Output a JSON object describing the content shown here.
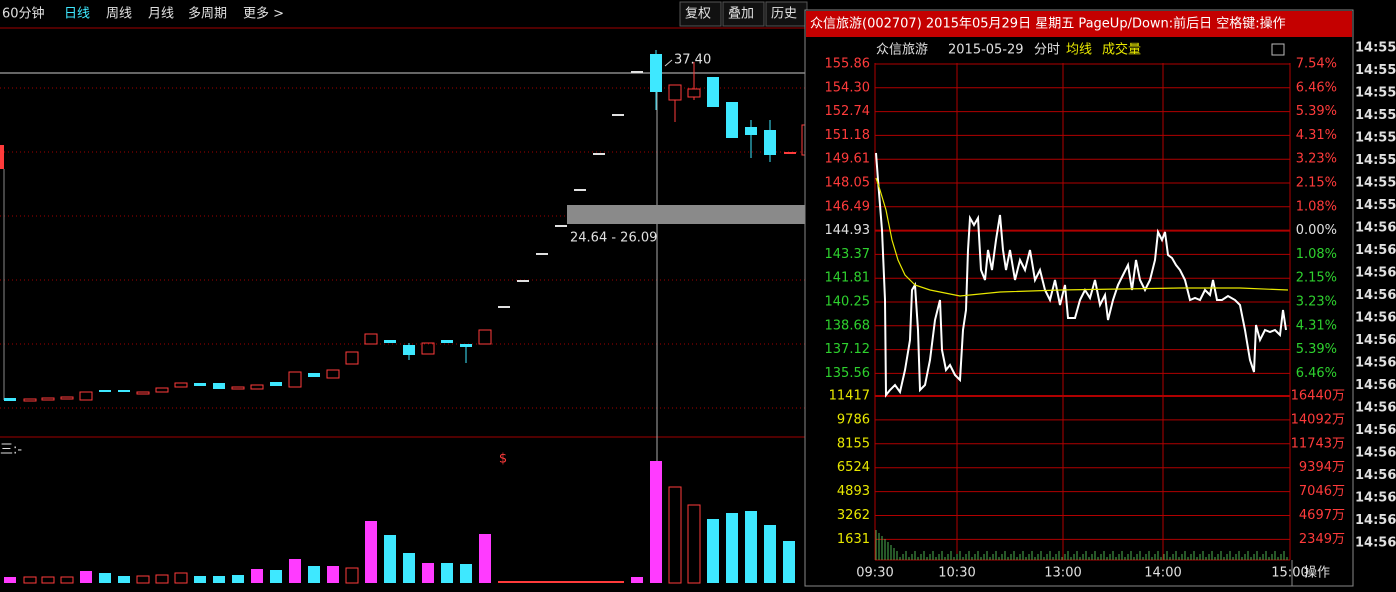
{
  "toolbar": {
    "tabs": [
      "60分钟",
      "日线",
      "周线",
      "月线",
      "多周期",
      "更多 >"
    ],
    "buttons": [
      "复权",
      "叠加",
      "历史"
    ]
  },
  "kline": {
    "high_label": "37.40",
    "range_label": "24.64 - 26.09",
    "marker": "$",
    "volume_label": "三:-"
  },
  "popup": {
    "title": "众信旅游(002707) 2015年05月29日 星期五 PageUp/Down:前后日 空格键:操作",
    "header": {
      "name": "众信旅游",
      "date": "2015-05-29",
      "mode": "分时",
      "avg": "均线",
      "volume": "成交量"
    },
    "price_labels": [
      "155.86",
      "154.30",
      "152.74",
      "151.18",
      "149.61",
      "148.05",
      "146.49",
      "144.93",
      "143.37",
      "141.81",
      "140.25",
      "138.68",
      "137.12",
      "135.56"
    ],
    "pct_labels": [
      "7.54%",
      "6.46%",
      "5.39%",
      "4.31%",
      "3.23%",
      "2.15%",
      "1.08%",
      "0.00%",
      "1.08%",
      "2.15%",
      "3.23%",
      "4.31%",
      "5.39%",
      "6.46%"
    ],
    "vol_labels": [
      "11417",
      "9786",
      "8155",
      "6524",
      "4893",
      "3262",
      "1631"
    ],
    "vol_amount_labels": [
      "16440万",
      "14092万",
      "11743万",
      "9394万",
      "7046万",
      "4697万",
      "2349万"
    ],
    "x_labels": [
      "09:30",
      "10:30",
      "13:00",
      "14:00",
      "15:00"
    ],
    "action": "操作"
  },
  "time_column": [
    "14:55",
    "14:55",
    "14:55",
    "14:55",
    "14:55",
    "14:55",
    "14:55",
    "14:55",
    "14:56",
    "14:56",
    "14:56",
    "14:56",
    "14:56",
    "14:56",
    "14:56",
    "14:56",
    "14:56",
    "14:56",
    "14:56",
    "14:56",
    "14:56",
    "14:56",
    "14:56"
  ]
}
